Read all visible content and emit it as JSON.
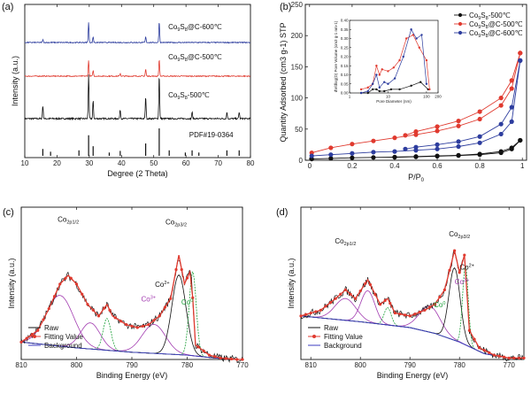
{
  "chart_data": [
    {
      "panel": "(a)",
      "type": "line",
      "xlabel": "Degree (2 Theta)",
      "ylabel": "Intensity (a.u.)",
      "xlim": [
        10,
        80
      ],
      "xticks": [
        10,
        20,
        30,
        40,
        50,
        60,
        70,
        80
      ],
      "y_ticks_shown": false,
      "reference_label": "PDF#19-0364",
      "reference_peaks": [
        15.6,
        18.0,
        26.8,
        29.8,
        31.2,
        36.2,
        39.6,
        47.5,
        51.7,
        54.8,
        59.8,
        61.9,
        64.0,
        72.7,
        76.5
      ],
      "reference_heights": [
        0.25,
        0.15,
        0.2,
        0.75,
        0.35,
        0.12,
        0.18,
        0.45,
        1.0,
        0.2,
        0.12,
        0.2,
        0.12,
        0.2,
        0.2
      ],
      "series": [
        {
          "name": "Co9S8-500℃",
          "label_main": "Co",
          "label_sub": "9",
          "label_mid": "S",
          "label_sub2": "8",
          "label_tail": "-500℃",
          "color": "#111111",
          "offset": 0,
          "peaks": [
            [
              15.6,
              0.3
            ],
            [
              29.8,
              1.0
            ],
            [
              31.2,
              0.4
            ],
            [
              39.6,
              0.2
            ],
            [
              47.5,
              0.5
            ],
            [
              51.7,
              1.0
            ],
            [
              61.9,
              0.15
            ],
            [
              72.7,
              0.15
            ],
            [
              76.5,
              0.15
            ]
          ]
        },
        {
          "name": "Co9S8@C-500℃",
          "label_main": "Co",
          "label_sub": "9",
          "label_mid": "S",
          "label_sub2": "8",
          "label_tail": "@C-500℃",
          "color": "#e03a2f",
          "offset": 1,
          "peaks": [
            [
              29.8,
              0.55
            ],
            [
              31.2,
              0.2
            ],
            [
              39.6,
              0.1
            ],
            [
              47.5,
              0.25
            ],
            [
              51.7,
              0.6
            ]
          ]
        },
        {
          "name": "Co9S8@C-600℃",
          "label_main": "Co",
          "label_sub": "9",
          "label_mid": "S",
          "label_sub2": "8",
          "label_tail": "@C-600℃",
          "color": "#2d3d9e",
          "offset": 2,
          "peaks": [
            [
              15.6,
              0.1
            ],
            [
              29.8,
              0.7
            ],
            [
              31.2,
              0.2
            ],
            [
              47.5,
              0.2
            ],
            [
              51.7,
              0.75
            ]
          ]
        }
      ]
    },
    {
      "panel": "(b)",
      "type": "line",
      "xlabel": "P/P0",
      "xlabel_main": "P/P",
      "xlabel_sub": "0",
      "ylabel": "Quantity Adsorbed (cm3 g-1) STP",
      "xlim": [
        0.0,
        1.0
      ],
      "ylim": [
        0,
        250
      ],
      "xticks": [
        0.0,
        0.2,
        0.4,
        0.6,
        0.8,
        1.0
      ],
      "yticks": [
        0,
        50,
        100,
        150,
        200,
        250
      ],
      "legend_position": "top-right",
      "series": [
        {
          "name": "Co9S8-500℃",
          "label_main": "Co",
          "label_sub": "9",
          "label_mid": "S",
          "label_sub2": "8",
          "label_tail": "-500℃",
          "color": "#111111",
          "adsorption": [
            [
              0.01,
              2
            ],
            [
              0.1,
              3
            ],
            [
              0.2,
              4
            ],
            [
              0.3,
              4.5
            ],
            [
              0.4,
              5
            ],
            [
              0.5,
              5.5
            ],
            [
              0.6,
              6.5
            ],
            [
              0.7,
              7.5
            ],
            [
              0.8,
              9
            ],
            [
              0.9,
              12
            ],
            [
              0.95,
              18
            ],
            [
              0.99,
              32
            ]
          ],
          "desorption": [
            [
              0.99,
              32
            ],
            [
              0.95,
              20
            ],
            [
              0.9,
              14
            ],
            [
              0.8,
              10
            ],
            [
              0.7,
              8
            ],
            [
              0.6,
              7
            ],
            [
              0.5,
              6
            ],
            [
              0.4,
              5
            ]
          ]
        },
        {
          "name": "Co9S8@C-500℃",
          "label_main": "Co",
          "label_sub": "9",
          "label_mid": "S",
          "label_sub2": "8",
          "label_tail": "@C-500℃",
          "color": "#e03a2f",
          "adsorption": [
            [
              0.01,
              12
            ],
            [
              0.1,
              20
            ],
            [
              0.2,
              26
            ],
            [
              0.3,
              31
            ],
            [
              0.4,
              36
            ],
            [
              0.5,
              41
            ],
            [
              0.6,
              47
            ],
            [
              0.7,
              55
            ],
            [
              0.8,
              66
            ],
            [
              0.9,
              88
            ],
            [
              0.95,
              115
            ],
            [
              0.99,
              172
            ]
          ],
          "desorption": [
            [
              0.99,
              172
            ],
            [
              0.95,
              128
            ],
            [
              0.9,
              100
            ],
            [
              0.8,
              78
            ],
            [
              0.7,
              63
            ],
            [
              0.6,
              54
            ],
            [
              0.5,
              46
            ],
            [
              0.45,
              40
            ]
          ]
        },
        {
          "name": "Co9S8@C-600℃",
          "label_main": "Co",
          "label_sub": "9",
          "label_mid": "S",
          "label_sub2": "8",
          "label_tail": "@C-600℃",
          "color": "#2d3d9e",
          "adsorption": [
            [
              0.01,
              7
            ],
            [
              0.1,
              9
            ],
            [
              0.2,
              11
            ],
            [
              0.3,
              13
            ],
            [
              0.4,
              14
            ],
            [
              0.5,
              16
            ],
            [
              0.6,
              18
            ],
            [
              0.7,
              22
            ],
            [
              0.8,
              28
            ],
            [
              0.9,
              42
            ],
            [
              0.95,
              62
            ],
            [
              0.99,
              160
            ]
          ],
          "desorption": [
            [
              0.99,
              160
            ],
            [
              0.95,
              85
            ],
            [
              0.9,
              58
            ],
            [
              0.8,
              38
            ],
            [
              0.7,
              30
            ],
            [
              0.6,
              25
            ],
            [
              0.5,
              21
            ],
            [
              0.45,
              18
            ]
          ]
        }
      ],
      "inset": {
        "xlabel": "Pore Diameter (nm)",
        "ylabel": "dV/dlog(D) Pore Volume (cm3 g-1 nm-1)",
        "xscale": "log",
        "xlim": [
          1,
          200
        ],
        "xticks": [
          1,
          10,
          100,
          200
        ],
        "ylim": [
          0,
          0.4
        ],
        "yticks": [
          0.0,
          0.05,
          0.1,
          0.15,
          0.2,
          0.25,
          0.3,
          0.35,
          0.4
        ],
        "series": [
          {
            "name": "Co9S8-500℃",
            "color": "#111111",
            "points": [
              [
                2,
                0.0
              ],
              [
                3,
                0.0
              ],
              [
                4,
                0.02
              ],
              [
                5,
                0.02
              ],
              [
                6,
                0.01
              ],
              [
                8,
                0.01
              ],
              [
                12,
                0.02
              ],
              [
                20,
                0.02
              ],
              [
                40,
                0.04
              ],
              [
                70,
                0.06
              ],
              [
                110,
                0.02
              ]
            ]
          },
          {
            "name": "Co9S8@C-500℃",
            "color": "#e03a2f",
            "points": [
              [
                2,
                0.02
              ],
              [
                3,
                0.03
              ],
              [
                4,
                0.05
              ],
              [
                5,
                0.15
              ],
              [
                6,
                0.1
              ],
              [
                7,
                0.13
              ],
              [
                10,
                0.12
              ],
              [
                14,
                0.14
              ],
              [
                20,
                0.18
              ],
              [
                30,
                0.3
              ],
              [
                45,
                0.32
              ],
              [
                65,
                0.25
              ],
              [
                100,
                0.18
              ],
              [
                120,
                0.02
              ]
            ]
          },
          {
            "name": "Co9S8@C-600℃",
            "color": "#2d3d9e",
            "points": [
              [
                2,
                0.0
              ],
              [
                3,
                0.01
              ],
              [
                4,
                0.05
              ],
              [
                5,
                0.1
              ],
              [
                6,
                0.03
              ],
              [
                8,
                0.06
              ],
              [
                10,
                0.05
              ],
              [
                15,
                0.08
              ],
              [
                25,
                0.2
              ],
              [
                40,
                0.35
              ],
              [
                55,
                0.3
              ],
              [
                75,
                0.32
              ],
              [
                100,
                0.05
              ]
            ]
          }
        ]
      }
    },
    {
      "panel": "(c)",
      "type": "line",
      "xlabel": "Binding Energy (eV)",
      "ylabel": "Intensity (a.u.)",
      "xlim": [
        810,
        770
      ],
      "xticks": [
        810,
        800,
        790,
        780,
        770
      ],
      "reversed_x": true,
      "annotations": [
        {
          "main": "Co",
          "sub": "2p1/2",
          "x": 801.5,
          "y": 0.95
        },
        {
          "main": "Co",
          "sub": "2p3/2",
          "x": 782,
          "y": 0.93
        },
        {
          "main": "Co",
          "sup": "2+",
          "x": 784.5,
          "y": 0.5,
          "color": "#111111"
        },
        {
          "main": "Co",
          "sup": "3+",
          "x": 787,
          "y": 0.4,
          "color": "#a23bb0"
        },
        {
          "main": "Co",
          "sup": "0",
          "x": 780,
          "y": 0.38,
          "color": "#1ea03a"
        }
      ],
      "legend": [
        {
          "label": "Raw",
          "color": "#111111",
          "marker": "line"
        },
        {
          "label": "Fitting Value",
          "color": "#e03a2f",
          "marker": "circle"
        },
        {
          "label": "Background",
          "color": "#3b3bc0",
          "marker": "line"
        }
      ],
      "spectrum": [
        [
          810,
          0.12
        ],
        [
          807,
          0.2
        ],
        [
          805,
          0.35
        ],
        [
          803,
          0.52
        ],
        [
          801.5,
          0.58
        ],
        [
          800,
          0.52
        ],
        [
          798,
          0.38
        ],
        [
          796,
          0.3
        ],
        [
          794.5,
          0.38
        ],
        [
          793.5,
          0.3
        ],
        [
          791,
          0.24
        ],
        [
          789,
          0.22
        ],
        [
          787,
          0.24
        ],
        [
          785,
          0.3
        ],
        [
          783,
          0.42
        ],
        [
          781.5,
          0.72
        ],
        [
          780.5,
          0.52
        ],
        [
          779.3,
          0.62
        ],
        [
          778.5,
          0.1
        ],
        [
          776,
          0.03
        ],
        [
          774,
          0.01
        ],
        [
          771,
          0.0
        ]
      ],
      "background": [
        [
          810,
          0.12
        ],
        [
          800,
          0.08
        ],
        [
          790,
          0.05
        ],
        [
          785,
          0.04
        ],
        [
          780,
          0.03
        ],
        [
          775,
          0.01
        ],
        [
          771,
          0.0
        ]
      ],
      "components": [
        {
          "name": "Co 2p1/2 satellite",
          "color": "#a23bb0",
          "center": 803,
          "height": 0.35,
          "width": 3.5
        },
        {
          "name": "Co 2p1/2",
          "color": "#a23bb0",
          "center": 797.5,
          "height": 0.18,
          "width": 2.5
        },
        {
          "name": "Co0 2p1/2",
          "color": "#1ea03a",
          "center": 794.5,
          "height": 0.22,
          "width": 1.0
        },
        {
          "name": "Co3+",
          "color": "#a23bb0",
          "center": 786,
          "height": 0.2,
          "width": 3
        },
        {
          "name": "Co2+",
          "color": "#111111",
          "center": 781.5,
          "height": 0.55,
          "width": 1.8
        },
        {
          "name": "Co0",
          "color": "#1ea03a",
          "center": 779,
          "height": 0.58,
          "width": 0.9
        }
      ]
    },
    {
      "panel": "(d)",
      "type": "line",
      "xlabel": "Binding Energy (eV)",
      "ylabel": "Intensity (a.u.)",
      "xlim": [
        812,
        767
      ],
      "xticks": [
        810,
        800,
        790,
        780,
        770
      ],
      "reversed_x": true,
      "annotations": [
        {
          "main": "Co",
          "sub": "2p1/2",
          "x": 803,
          "y": 0.8
        },
        {
          "main": "Co",
          "sub": "2p3/2",
          "x": 780,
          "y": 0.85
        },
        {
          "main": "Co",
          "sup": "2+",
          "x": 778.5,
          "y": 0.62,
          "color": "#111111"
        },
        {
          "main": "Co",
          "sup": "3+",
          "x": 779.5,
          "y": 0.52,
          "color": "#a23bb0"
        },
        {
          "main": "Co",
          "sup": "0",
          "x": 784,
          "y": 0.36,
          "color": "#1ea03a"
        }
      ],
      "legend": [
        {
          "label": "Raw",
          "color": "#111111",
          "marker": "line"
        },
        {
          "label": "Fitting Value",
          "color": "#e03a2f",
          "marker": "circle"
        },
        {
          "label": "Background",
          "color": "#3b3bc0",
          "marker": "line"
        }
      ],
      "spectrum": [
        [
          812,
          0.3
        ],
        [
          808,
          0.34
        ],
        [
          805,
          0.42
        ],
        [
          803,
          0.48
        ],
        [
          801,
          0.42
        ],
        [
          798.5,
          0.55
        ],
        [
          796,
          0.38
        ],
        [
          794.5,
          0.42
        ],
        [
          793,
          0.32
        ],
        [
          790,
          0.3
        ],
        [
          787,
          0.34
        ],
        [
          785,
          0.38
        ],
        [
          783,
          0.48
        ],
        [
          781,
          0.75
        ],
        [
          780,
          0.6
        ],
        [
          779,
          0.72
        ],
        [
          778,
          0.2
        ],
        [
          776,
          0.08
        ],
        [
          773,
          0.03
        ],
        [
          770,
          0.01
        ]
      ],
      "background": [
        [
          812,
          0.3
        ],
        [
          800,
          0.26
        ],
        [
          790,
          0.22
        ],
        [
          785,
          0.18
        ],
        [
          780,
          0.12
        ],
        [
          775,
          0.04
        ],
        [
          770,
          0.01
        ]
      ],
      "components": [
        {
          "name": "Co 2p1/2 satellite",
          "color": "#a23bb0",
          "center": 803,
          "height": 0.15,
          "width": 3
        },
        {
          "name": "Co 2p1/2",
          "color": "#a23bb0",
          "center": 798.5,
          "height": 0.22,
          "width": 2
        },
        {
          "name": "Co0 2p1/2",
          "color": "#1ea03a",
          "center": 794.5,
          "height": 0.12,
          "width": 1.0
        },
        {
          "name": "Co3+",
          "color": "#a23bb0",
          "center": 786,
          "height": 0.18,
          "width": 3
        },
        {
          "name": "Co2+",
          "color": "#111111",
          "center": 781,
          "height": 0.5,
          "width": 1.6
        },
        {
          "name": "Co0",
          "color": "#1ea03a",
          "center": 778.8,
          "height": 0.55,
          "width": 0.8
        }
      ]
    }
  ]
}
